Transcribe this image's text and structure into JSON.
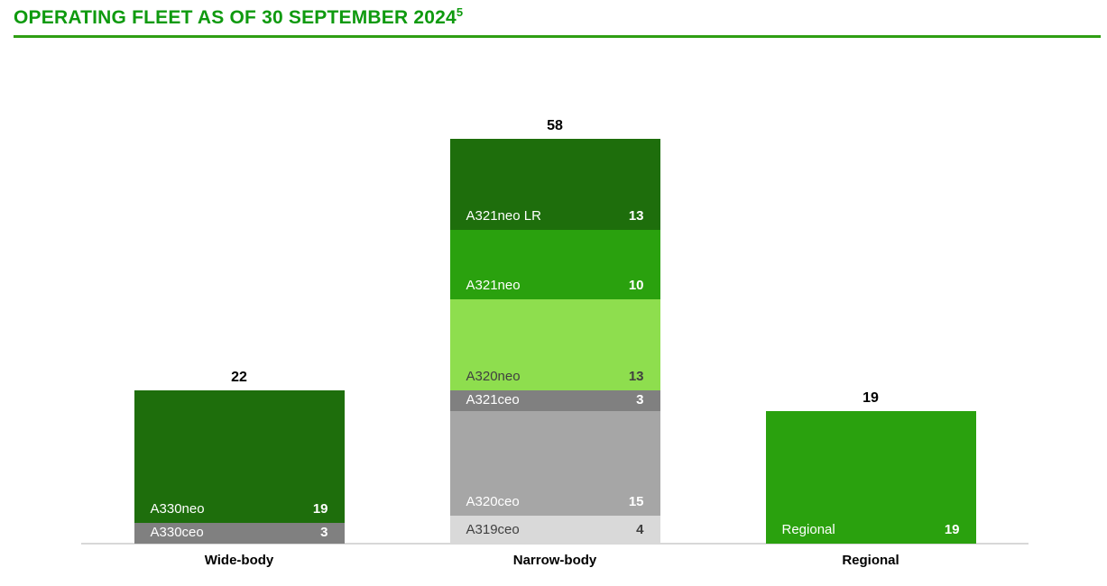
{
  "title": {
    "text": "OPERATING FLEET AS OF 30 SEPTEMBER 2024",
    "superscript": "5"
  },
  "colors": {
    "title_text": "#0f9a0f",
    "title_rule": "#2f9e13",
    "axis_line": "#d8d8d8",
    "dark_green": "#1e6e0c",
    "mid_green": "#2aa10e",
    "light_green": "#8ede4e",
    "dark_gray": "#808080",
    "mid_gray": "#a6a6a6",
    "light_gray": "#d9d9d9"
  },
  "chart_data": {
    "type": "bar",
    "stacked": true,
    "title": "OPERATING FLEET AS OF 30 SEPTEMBER 2024",
    "xlabel": "",
    "ylabel": "",
    "ylim": [
      0,
      62
    ],
    "grid": false,
    "legend": "labels inside segments",
    "categories": [
      "Wide-body",
      "Narrow-body",
      "Regional"
    ],
    "totals": [
      22,
      58,
      19
    ],
    "bars": [
      {
        "category": "Wide-body",
        "total": 22,
        "segments_top_to_bottom": [
          {
            "label": "A330neo",
            "value": 19,
            "color": "#1e6e0c",
            "text_color": "#ffffff"
          },
          {
            "label": "A330ceo",
            "value": 3,
            "color": "#808080",
            "text_color": "#ffffff"
          }
        ]
      },
      {
        "category": "Narrow-body",
        "total": 58,
        "segments_top_to_bottom": [
          {
            "label": "A321neo LR",
            "value": 13,
            "color": "#1e6e0c",
            "text_color": "#ffffff"
          },
          {
            "label": "A321neo",
            "value": 10,
            "color": "#2aa10e",
            "text_color": "#ffffff"
          },
          {
            "label": "A320neo",
            "value": 13,
            "color": "#8ede4e",
            "text_color": "#404040"
          },
          {
            "label": "A321ceo",
            "value": 3,
            "color": "#808080",
            "text_color": "#ffffff"
          },
          {
            "label": "A320ceo",
            "value": 15,
            "color": "#a6a6a6",
            "text_color": "#ffffff"
          },
          {
            "label": "A319ceo",
            "value": 4,
            "color": "#d9d9d9",
            "text_color": "#404040"
          }
        ]
      },
      {
        "category": "Regional",
        "total": 19,
        "segments_top_to_bottom": [
          {
            "label": "Regional",
            "value": 19,
            "color": "#2aa10e",
            "text_color": "#ffffff"
          }
        ]
      }
    ]
  }
}
